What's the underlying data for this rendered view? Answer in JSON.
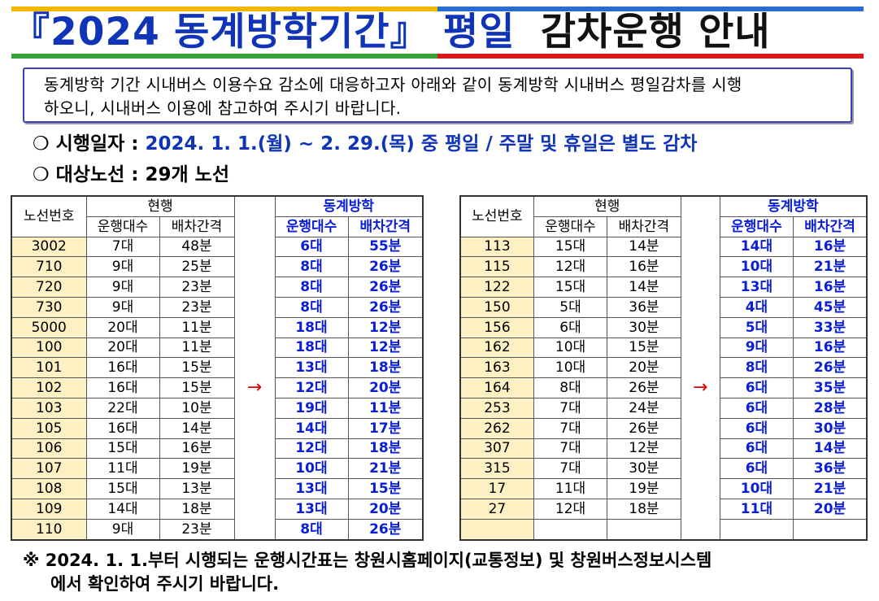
{
  "title": {
    "part1": "『2024 동계방학기간』 평일",
    "part2": "감차운행 안내"
  },
  "notice": {
    "line1": "동계방학 기간 시내버스 이용수요 감소에 대응하고자 아래와 같이 동계방학 시내버스 평일감차를 시행",
    "line2": "하오니, 시내버스 이용에 참고하여 주시기 바랍니다."
  },
  "period": {
    "marker": "❍",
    "label": "시행일자 : ",
    "value": "2024. 1. 1.(월) ~ 2. 29.(목) 중 평일 / 주말 및 휴일은 별도 감차"
  },
  "routes": {
    "marker": "❍",
    "label": "대상노선 : ",
    "value": "29개 노선"
  },
  "header": {
    "route_no": "노선번호",
    "current": "현행",
    "winter": "동계방학",
    "buses": "운행대수",
    "interval": "배차간격",
    "arrow": "→"
  },
  "tables": {
    "left": [
      [
        "3002",
        "7대",
        "48분",
        "6대",
        "55분"
      ],
      [
        "710",
        "9대",
        "25분",
        "8대",
        "26분"
      ],
      [
        "720",
        "9대",
        "23분",
        "8대",
        "26분"
      ],
      [
        "730",
        "9대",
        "23분",
        "8대",
        "26분"
      ],
      [
        "5000",
        "20대",
        "11분",
        "18대",
        "12분"
      ],
      [
        "100",
        "20대",
        "11분",
        "18대",
        "12분"
      ],
      [
        "101",
        "16대",
        "15분",
        "13대",
        "18분"
      ],
      [
        "102",
        "16대",
        "15분",
        "12대",
        "20분"
      ],
      [
        "103",
        "22대",
        "10분",
        "19대",
        "11분"
      ],
      [
        "105",
        "16대",
        "14분",
        "14대",
        "17분"
      ],
      [
        "106",
        "15대",
        "16분",
        "12대",
        "18분"
      ],
      [
        "107",
        "11대",
        "19분",
        "10대",
        "21분"
      ],
      [
        "108",
        "15대",
        "13분",
        "13대",
        "15분"
      ],
      [
        "109",
        "14대",
        "18분",
        "13대",
        "20분"
      ],
      [
        "110",
        "9대",
        "23분",
        "8대",
        "26분"
      ]
    ],
    "right": [
      [
        "113",
        "15대",
        "14분",
        "14대",
        "16분"
      ],
      [
        "115",
        "12대",
        "16분",
        "10대",
        "21분"
      ],
      [
        "122",
        "15대",
        "14분",
        "13대",
        "16분"
      ],
      [
        "150",
        "5대",
        "36분",
        "4대",
        "45분"
      ],
      [
        "156",
        "6대",
        "30분",
        "5대",
        "33분"
      ],
      [
        "162",
        "10대",
        "15분",
        "9대",
        "16분"
      ],
      [
        "163",
        "10대",
        "20분",
        "8대",
        "26분"
      ],
      [
        "164",
        "8대",
        "26분",
        "6대",
        "35분"
      ],
      [
        "253",
        "7대",
        "24분",
        "6대",
        "28분"
      ],
      [
        "262",
        "7대",
        "26분",
        "6대",
        "30분"
      ],
      [
        "307",
        "7대",
        "12분",
        "6대",
        "14분"
      ],
      [
        "315",
        "7대",
        "30분",
        "6대",
        "36분"
      ],
      [
        "17",
        "11대",
        "19분",
        "10대",
        "21분"
      ],
      [
        "27",
        "12대",
        "18분",
        "11대",
        "20분"
      ],
      [
        "",
        "",
        "",
        "",
        ""
      ]
    ]
  },
  "footer": {
    "line1": "※  2024. 1. 1.부터 시행되는 운행시간표는 창원시홈페이지(교통정보) 및 창원버스정보시스템",
    "line2": "에서 확인하여 주시기 바랍니다."
  },
  "colors": {
    "title_blue": "#1034b8",
    "value_blue": "#0a1ed6",
    "route_cell": "#fdf1c4",
    "arrow_red": "#e00000"
  }
}
